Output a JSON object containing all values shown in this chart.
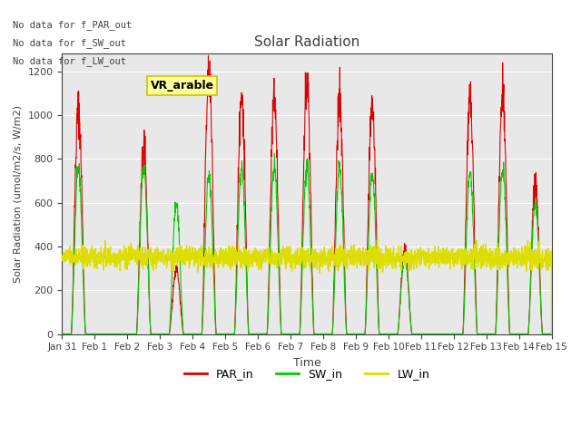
{
  "title": "Solar Radiation",
  "xlabel": "Time",
  "ylabel": "Solar Radiation (umol/m2/s, W/m2)",
  "ylim": [
    0,
    1280
  ],
  "yticks": [
    0,
    200,
    400,
    600,
    800,
    1000,
    1200
  ],
  "bg_color": "#e8e8e8",
  "text_color": "#404040",
  "annotations": [
    "No data for f_PAR_out",
    "No data for f_SW_out",
    "No data for f_LW_out"
  ],
  "vr_arable_label": "VR_arable",
  "vr_arable_color": "#ffff99",
  "vr_arable_border": "#c8c800",
  "PAR_color": "#dd0000",
  "SW_color": "#00cc00",
  "LW_color": "#dddd00",
  "x_tick_labels": [
    "Jan 31",
    "Feb 1",
    "Feb 2",
    "Feb 3",
    "Feb 4",
    "Feb 5",
    "Feb 6",
    "Feb 7",
    "Feb 8",
    "Feb 9",
    "Feb 10",
    "Feb 11",
    "Feb 12",
    "Feb 13",
    "Feb 14",
    "Feb 15"
  ],
  "num_days": 15,
  "PAR_peaks": [
    1030,
    0,
    860,
    290,
    1200,
    1070,
    1090,
    1140,
    1070,
    1040,
    390,
    0,
    1090,
    1100,
    680
  ],
  "SW_peaks": [
    750,
    0,
    760,
    590,
    720,
    760,
    760,
    770,
    760,
    740,
    350,
    0,
    740,
    760,
    600
  ],
  "LW_flat": 350,
  "LW_noise_amp": 25
}
